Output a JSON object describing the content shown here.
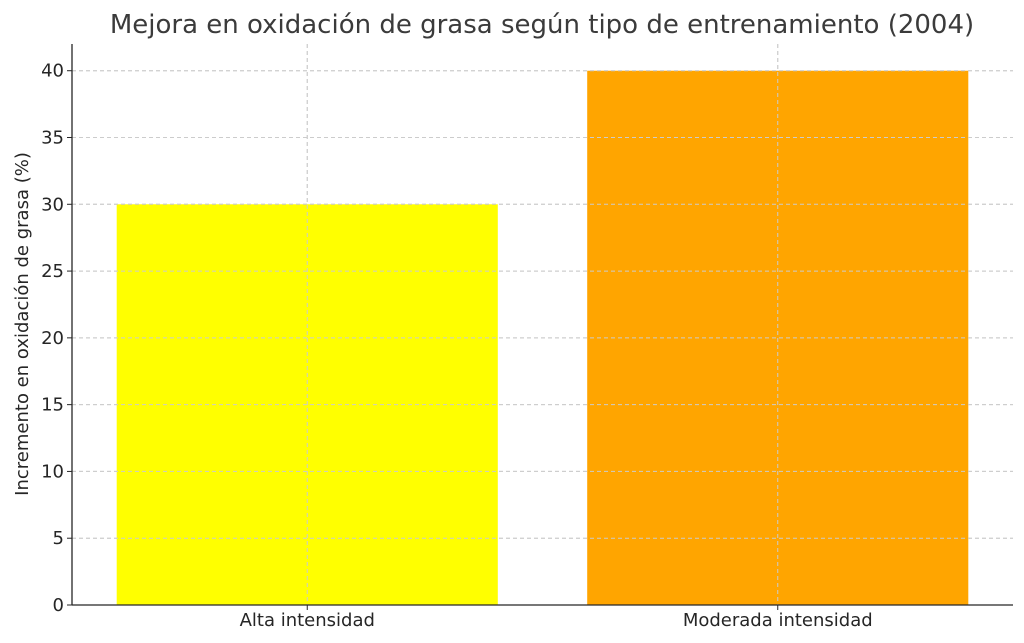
{
  "chart_data": {
    "type": "bar",
    "title": "Mejora en oxidación de grasa según tipo de entrenamiento (2004)",
    "xlabel": "",
    "ylabel": "Incremento en oxidación de grasa (%)",
    "categories": [
      "Alta intensidad",
      "Moderada intensidad"
    ],
    "values": [
      30,
      40
    ],
    "colors": [
      "#ffff00",
      "#ffa500"
    ],
    "ylim": [
      0,
      42
    ],
    "yticks": [
      0,
      5,
      10,
      15,
      20,
      25,
      30,
      35,
      40
    ],
    "grid": true,
    "legend": "none"
  }
}
